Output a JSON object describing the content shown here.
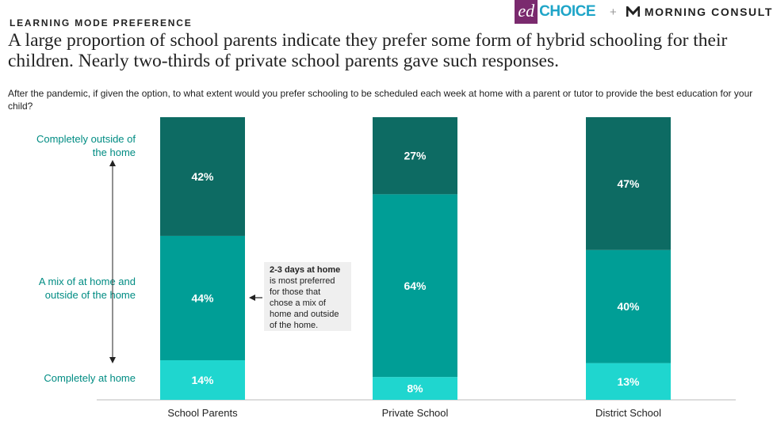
{
  "kicker": "LEARNING MODE PREFERENCE",
  "logos": {
    "edchoice_ed": "ed",
    "edchoice_choice": "CHOICE",
    "plus": "+",
    "morning_consult": "MORNING CONSULT"
  },
  "headline": "A large proportion of school parents indicate they prefer some form of hybrid schooling for their children. Nearly two-thirds of private school parents gave such responses.",
  "question": "After the pandemic, if given the option, to what extent would you prefer schooling to be scheduled each week at home with a parent or tutor to provide the best education for your child?",
  "callout": {
    "bold": "2-3 days at home",
    "text": "is most preferred for those that chose a mix of home and outside of the home."
  },
  "colors": {
    "outside": "#0d6b63",
    "mix": "#009e96",
    "home": "#1fd6cf",
    "axis_label": "#008c83"
  },
  "chart_data": {
    "type": "bar",
    "stacked": true,
    "orientation": "vertical",
    "categories": [
      "School Parents",
      "Private School",
      "District School"
    ],
    "series": [
      {
        "name": "Completely at home",
        "values": [
          14,
          8,
          13
        ]
      },
      {
        "name": "A mix of at home and outside of the home",
        "values": [
          44,
          64,
          40
        ]
      },
      {
        "name": "Completely outside of the home",
        "values": [
          42,
          27,
          47
        ]
      }
    ],
    "value_labels": [
      [
        "14%",
        "8%",
        "13%"
      ],
      [
        "44%",
        "64%",
        "40%"
      ],
      [
        "42%",
        "27%",
        "47%"
      ]
    ],
    "axis_labels": {
      "top": [
        "Completely outside of",
        "the home"
      ],
      "middle": [
        "A mix of at home and",
        "outside of the home"
      ],
      "bottom": [
        "Completely at home"
      ]
    }
  }
}
